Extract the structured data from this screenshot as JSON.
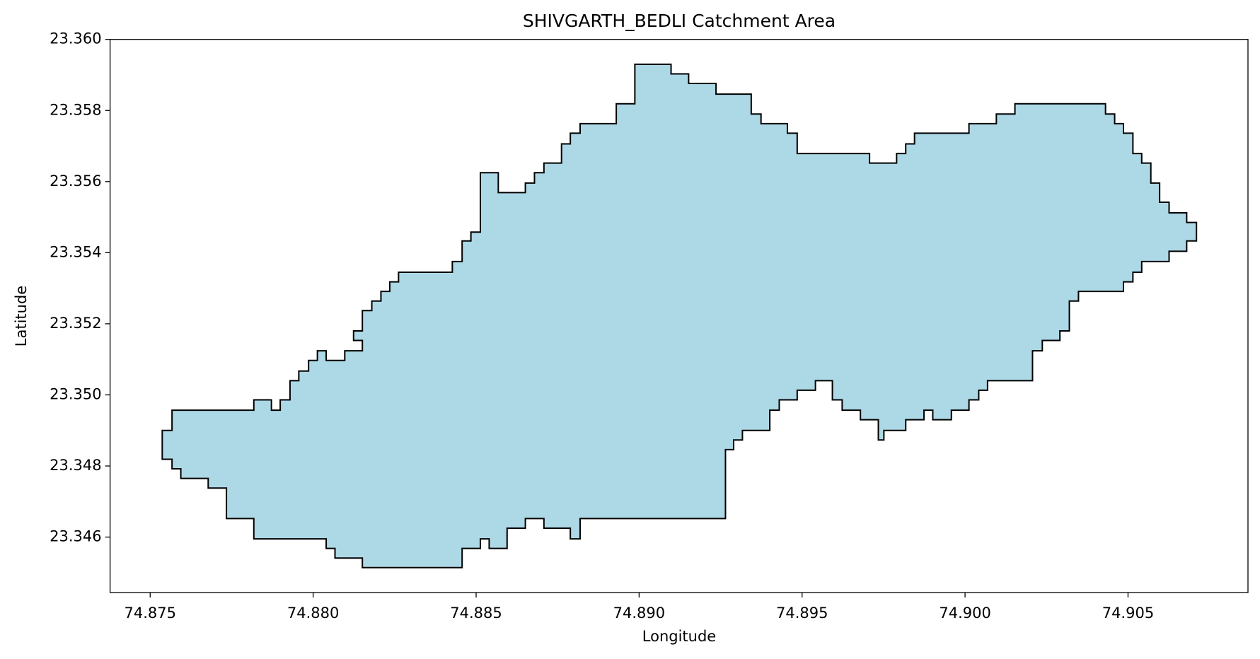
{
  "chart_data": {
    "type": "polygon",
    "title": "SHIVGARTH_BEDLI Catchment Area",
    "xlabel": "Longitude",
    "ylabel": "Latitude",
    "color": "#add8e6",
    "edgecolor": "#000000",
    "xlim": [
      74.87377,
      74.90868
    ],
    "ylim": [
      23.34444,
      23.36
    ],
    "xticks": [
      74.875,
      {
        "value": 74.88,
        "label": "74.880"
      },
      74.885,
      {
        "value": 74.89,
        "label": "74.890"
      },
      74.895,
      {
        "value": 74.9,
        "label": "74.900"
      },
      74.905
    ],
    "yticks": [
      23.346,
      23.348,
      {
        "value": 23.35,
        "label": "23.350"
      },
      23.352,
      23.354,
      23.356,
      23.358,
      {
        "value": 23.36,
        "label": "23.360"
      }
    ],
    "x": [
      74.87537,
      74.87567,
      74.87567,
      74.87818,
      74.87818,
      74.87872,
      74.87872,
      74.87899,
      74.87899,
      74.87929,
      74.87929,
      74.87956,
      74.87956,
      74.87986,
      74.87986,
      74.88013,
      74.88013,
      74.8804,
      74.8804,
      74.88097,
      74.88097,
      74.88151,
      74.88151,
      74.88124,
      74.88124,
      74.88151,
      74.88151,
      74.8818,
      74.8818,
      74.88208,
      74.88208,
      74.88235,
      74.88235,
      74.88262,
      74.88262,
      74.88427,
      74.88427,
      74.88457,
      74.88457,
      74.88484,
      74.88484,
      74.88513,
      74.88513,
      74.88568,
      74.88568,
      74.88651,
      74.88651,
      74.88679,
      74.88679,
      74.88708,
      74.88708,
      74.88762,
      74.88762,
      74.88789,
      74.88789,
      74.88819,
      74.88819,
      74.8893,
      74.8893,
      74.88987,
      74.88987,
      74.89098,
      74.89098,
      74.89152,
      74.89152,
      74.89236,
      74.89236,
      74.89344,
      74.89344,
      74.89374,
      74.89374,
      74.89455,
      74.89455,
      74.89485,
      74.89485,
      74.89707,
      74.89707,
      74.8979,
      74.8979,
      74.89818,
      74.89818,
      74.89845,
      74.89845,
      74.90012,
      74.90012,
      74.90096,
      74.90096,
      74.90153,
      74.90153,
      74.90431,
      74.90431,
      74.90459,
      74.90459,
      74.90486,
      74.90486,
      74.90515,
      74.90515,
      74.90542,
      74.90542,
      74.9057,
      74.9057,
      74.90597,
      74.90597,
      74.90626,
      74.90626,
      74.9068,
      74.9068,
      74.9071,
      74.9071,
      74.9068,
      74.9068,
      74.90626,
      74.90626,
      74.90542,
      74.90542,
      74.90515,
      74.90515,
      74.90486,
      74.90486,
      74.90348,
      74.90348,
      74.9032,
      74.9032,
      74.90291,
      74.90291,
      74.90237,
      74.90237,
      74.90207,
      74.90207,
      74.90069,
      74.90069,
      74.90042,
      74.90042,
      74.90012,
      74.90012,
      74.89958,
      74.89958,
      74.89901,
      74.89901,
      74.89874,
      74.89874,
      74.89818,
      74.89818,
      74.89751,
      74.89751,
      74.89734,
      74.89734,
      74.89679,
      74.89679,
      74.89623,
      74.89623,
      74.89593,
      74.89593,
      74.89541,
      74.89541,
      74.89485,
      74.89485,
      74.8943,
      74.8943,
      74.89401,
      74.89401,
      74.89317,
      74.89317,
      74.8929,
      74.8929,
      74.89265,
      74.89265,
      74.88819,
      74.88819,
      74.88789,
      74.88789,
      74.88708,
      74.88708,
      74.88651,
      74.88651,
      74.88595,
      74.88595,
      74.8854,
      74.8854,
      74.88513,
      74.88513,
      74.88457,
      74.88457,
      74.88151,
      74.88151,
      74.88067,
      74.88067,
      74.8804,
      74.8804,
      74.87818,
      74.87818,
      74.87734,
      74.87734,
      74.87678,
      74.87678,
      74.87594,
      74.87594,
      74.87567,
      74.87567,
      74.87537
    ],
    "y": [
      23.349,
      23.349,
      23.34957,
      23.34957,
      23.34986,
      23.34986,
      23.34957,
      23.34957,
      23.34986,
      23.34986,
      23.3504,
      23.3504,
      23.35067,
      23.35067,
      23.35097,
      23.35097,
      23.35124,
      23.35124,
      23.35097,
      23.35097,
      23.35124,
      23.35124,
      23.35153,
      23.35153,
      23.3518,
      23.3518,
      23.35237,
      23.35237,
      23.35264,
      23.35264,
      23.35291,
      23.35291,
      23.35318,
      23.35318,
      23.35345,
      23.35345,
      23.35375,
      23.35375,
      23.35433,
      23.35433,
      23.35458,
      23.35458,
      23.35625,
      23.35625,
      23.35569,
      23.35569,
      23.35596,
      23.35596,
      23.35625,
      23.35625,
      23.35652,
      23.35652,
      23.35706,
      23.35706,
      23.35736,
      23.35736,
      23.35763,
      23.35763,
      23.35819,
      23.35819,
      23.3593,
      23.3593,
      23.35903,
      23.35903,
      23.35876,
      23.35876,
      23.35846,
      23.35846,
      23.3579,
      23.3579,
      23.35763,
      23.35763,
      23.35736,
      23.35736,
      23.35679,
      23.35679,
      23.35652,
      23.35652,
      23.35679,
      23.35679,
      23.35706,
      23.35706,
      23.35736,
      23.35736,
      23.35763,
      23.35763,
      23.3579,
      23.3579,
      23.35819,
      23.35819,
      23.3579,
      23.3579,
      23.35763,
      23.35763,
      23.35736,
      23.35736,
      23.35679,
      23.35679,
      23.35652,
      23.35652,
      23.35596,
      23.35596,
      23.35542,
      23.35542,
      23.35512,
      23.35512,
      23.35485,
      23.35485,
      23.35433,
      23.35433,
      23.35404,
      23.35404,
      23.35375,
      23.35375,
      23.35345,
      23.35345,
      23.35318,
      23.35318,
      23.35291,
      23.35291,
      23.35264,
      23.35264,
      23.3518,
      23.3518,
      23.35153,
      23.35153,
      23.35124,
      23.35124,
      23.3504,
      23.3504,
      23.35013,
      23.35013,
      23.34986,
      23.34986,
      23.34957,
      23.34957,
      23.3493,
      23.3493,
      23.34957,
      23.34957,
      23.3493,
      23.3493,
      23.349,
      23.349,
      23.34873,
      23.34873,
      23.3493,
      23.3493,
      23.34957,
      23.34957,
      23.34986,
      23.34986,
      23.3504,
      23.3504,
      23.35013,
      23.35013,
      23.34986,
      23.34986,
      23.34957,
      23.34957,
      23.349,
      23.349,
      23.34873,
      23.34873,
      23.34846,
      23.34846,
      23.34652,
      23.34652,
      23.34595,
      23.34595,
      23.34625,
      23.34625,
      23.34652,
      23.34652,
      23.34625,
      23.34625,
      23.34568,
      23.34568,
      23.34595,
      23.34595,
      23.34568,
      23.34568,
      23.34514,
      23.34514,
      23.34541,
      23.34541,
      23.34568,
      23.34568,
      23.34595,
      23.34595,
      23.34652,
      23.34652,
      23.34738,
      23.34738,
      23.34765,
      23.34765,
      23.34792,
      23.34792,
      23.34819,
      23.34819
    ]
  }
}
